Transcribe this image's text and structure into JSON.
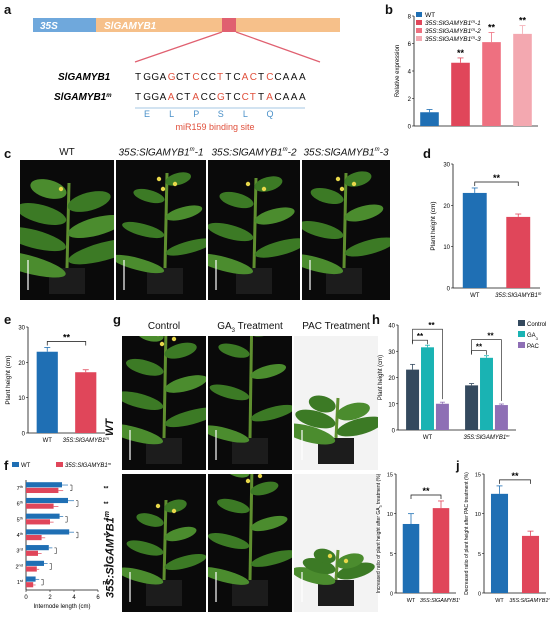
{
  "panels": {
    "a": {
      "label": "a",
      "gene_bar": {
        "promoter": "35S",
        "gene": "SlGAMYB1"
      },
      "seq1": {
        "name": "SlGAMYB1",
        "sequence": "TGGAGCTCCCTTCACTCCAAA"
      },
      "seq2": {
        "name": "SlGAMYB1m",
        "sequence": "TGGAACTACCGTCCTTACAAA"
      },
      "amino_acids": [
        "E",
        "L",
        "P",
        "S",
        "L",
        "Q"
      ],
      "site_label": "miR159 binding site",
      "colors": {
        "promoter": "#6fa8dc",
        "gene": "#f6c08a",
        "site": "#e06070",
        "mut": "#e0503c",
        "aa": "#4a90c8"
      }
    },
    "b": {
      "label": "b",
      "chart_data": {
        "type": "bar",
        "categories": [
          "WT",
          "35S:SlGAMYB1m-1",
          "35S:SlGAMYB1m-2",
          "35S:SlGAMYB1m-3"
        ],
        "values": [
          1.0,
          4.6,
          6.1,
          6.7
        ],
        "errors": [
          0.2,
          0.35,
          0.7,
          0.6
        ],
        "sig": [
          "",
          "**",
          "**",
          "**"
        ],
        "colors": [
          "#1f6fb4",
          "#e0465a",
          "#ee7080",
          "#f3a8b0"
        ],
        "legend": [
          "WT",
          "35S:SlGAMYB1m-1",
          "35S:SlGAMYB1m-2",
          "35S:SlGAMYB1m-3"
        ],
        "ylabel": "Relative expression",
        "ylim": [
          0,
          8
        ],
        "yticks": [
          0,
          2,
          4,
          6,
          8
        ],
        "legend_position": "top-left"
      }
    },
    "c": {
      "label": "c",
      "titles": [
        "WT",
        "35S:SlGAMYB1m-1",
        "35S:SlGAMYB1m-2",
        "35S:SlGAMYB1m-3"
      ]
    },
    "d": {
      "label": "d",
      "chart_data": {
        "type": "bar",
        "categories": [
          "WT",
          "35S:SlGAMYB1m"
        ],
        "values": [
          23,
          17.2
        ],
        "errors": [
          1.2,
          0.7
        ],
        "colors": [
          "#1f6fb4",
          "#e0465a"
        ],
        "sig": "**",
        "ylabel": "Plant height (cm)",
        "ylim": [
          0,
          30
        ],
        "yticks": [
          0,
          10,
          20,
          30
        ]
      }
    },
    "e": {
      "label": "e",
      "chart_data": {
        "type": "bar",
        "categories": [
          "WT",
          "35S:SlGAMYB1m"
        ],
        "values": [
          23,
          17.2
        ],
        "errors": [
          1.2,
          0.7
        ],
        "colors": [
          "#1f6fb4",
          "#e0465a"
        ],
        "sig": "**",
        "ylabel": "Plant height (cm)",
        "ylim": [
          0,
          30
        ],
        "yticks": [
          0,
          10,
          20,
          30
        ]
      }
    },
    "f": {
      "label": "f",
      "chart_data": {
        "type": "bar",
        "orientation": "horizontal",
        "categories": [
          "1st",
          "2nd",
          "3rd",
          "4th",
          "5th",
          "6th",
          "7th"
        ],
        "series": [
          {
            "name": "WT",
            "values": [
              0.8,
              1.5,
              1.9,
              3.6,
              2.8,
              3.5,
              3.0
            ],
            "errors": [
              0.3,
              0.3,
              0.3,
              0.4,
              0.3,
              0.5,
              0.5
            ],
            "color": "#1f6fb4"
          },
          {
            "name": "35S:SlGAMYB1m",
            "values": [
              0.6,
              0.9,
              1.0,
              1.3,
              2.0,
              2.3,
              2.7
            ],
            "errors": [
              0.2,
              0.2,
              0.3,
              0.3,
              0.3,
              0.4,
              0.4
            ],
            "color": "#e0465a"
          }
        ],
        "sig": [
          "ns",
          "**",
          "*",
          "**",
          "**",
          "**",
          "**"
        ],
        "xlabel": "Internode length (cm)",
        "xlim": [
          0,
          6
        ],
        "xticks": [
          0,
          2,
          4,
          6
        ],
        "legend_position": "top"
      }
    },
    "g": {
      "label": "g",
      "col_titles": [
        "Control",
        "GA3 Treatment",
        "PAC Treatment"
      ],
      "row_titles": [
        "WT",
        "35S:SlGAMYB1m"
      ]
    },
    "h": {
      "label": "h",
      "chart_data": {
        "type": "bar",
        "categories": [
          "WT",
          "35S:SlGAMYB1m"
        ],
        "series": [
          {
            "name": "Control",
            "values": [
              23,
              17
            ],
            "errors": [
              2.0,
              0.7
            ],
            "color": "#34495e"
          },
          {
            "name": "GA3",
            "values": [
              31.5,
              27.5
            ],
            "errors": [
              0.8,
              0.8
            ],
            "color": "#1ab3b3"
          },
          {
            "name": "PAC",
            "values": [
              10,
              9.5
            ],
            "errors": [
              0.6,
              0.4
            ],
            "color": "#8e6fb5"
          }
        ],
        "sig": "**",
        "ylabel": "Plant height (cm)",
        "ylim": [
          0,
          40
        ],
        "yticks": [
          0,
          10,
          20,
          30,
          40
        ],
        "legend_position": "top-right"
      }
    },
    "i": {
      "label": "i",
      "chart_data": {
        "type": "bar",
        "categories": [
          "WT",
          "35S:SlGAMYB1m"
        ],
        "values": [
          8.7,
          10.7
        ],
        "errors": [
          1.3,
          0.9
        ],
        "colors": [
          "#1f6fb4",
          "#e0465a"
        ],
        "sig": "**",
        "ylabel": "Increased ratio of plant height after GA3 treatment (%)",
        "ylim": [
          0,
          15
        ],
        "yticks": [
          0,
          5,
          10,
          15
        ]
      }
    },
    "j": {
      "label": "j",
      "chart_data": {
        "type": "bar",
        "categories": [
          "WT",
          "35S:SlGAMYB1m"
        ],
        "values": [
          12.5,
          7.2
        ],
        "errors": [
          1.0,
          0.6
        ],
        "colors": [
          "#1f6fb4",
          "#e0465a"
        ],
        "sig": "**",
        "ylabel": "Decreased ratio of plant height after PAC treatment (%)",
        "ylim": [
          0,
          15
        ],
        "yticks": [
          0,
          5,
          10,
          15
        ]
      }
    }
  }
}
